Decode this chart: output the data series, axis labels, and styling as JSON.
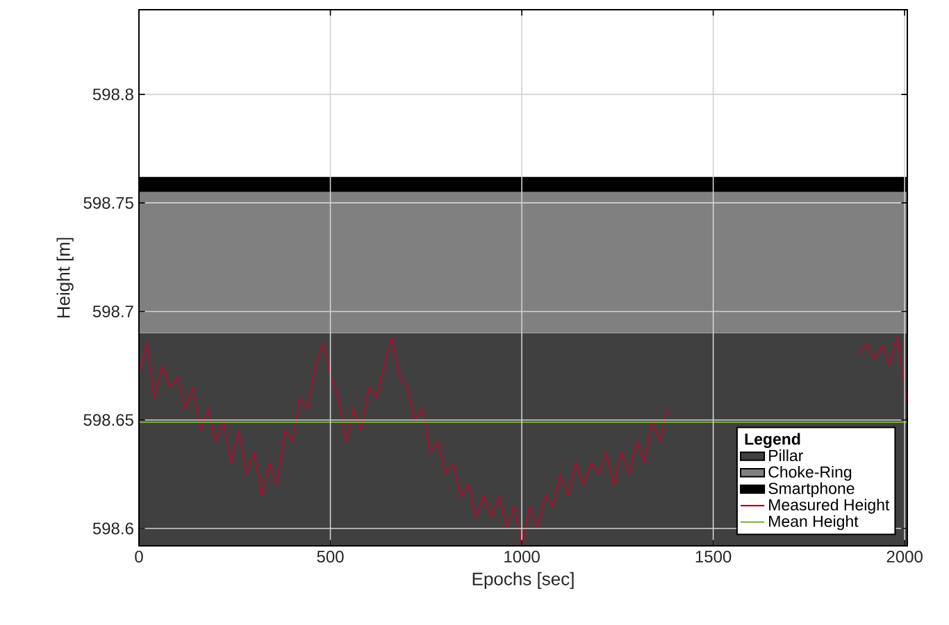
{
  "chart_data": {
    "type": "line",
    "xlabel": "Epochs [sec]",
    "ylabel": "Height [m]",
    "legend_title": "Legend",
    "x": [
      0,
      20,
      40,
      60,
      80,
      100,
      120,
      140,
      160,
      180,
      200,
      220,
      240,
      260,
      280,
      300,
      320,
      340,
      360,
      380,
      400,
      420,
      440,
      460,
      480,
      500,
      520,
      540,
      560,
      580,
      600,
      620,
      640,
      660,
      680,
      700,
      720,
      740,
      760,
      780,
      800,
      820,
      840,
      860,
      880,
      900,
      920,
      940,
      960,
      980,
      1000,
      1020,
      1040,
      1060,
      1080,
      1100,
      1120,
      1140,
      1160,
      1180,
      1200,
      1220,
      1240,
      1260,
      1280,
      1300,
      1320,
      1340,
      1360,
      1380,
      1400,
      1500,
      1600,
      1700,
      1800,
      1880,
      1900,
      1920,
      1940,
      1960,
      1980,
      2000,
      2005
    ],
    "series": [
      {
        "name": "Pillar",
        "type": "area",
        "color": "#404040",
        "x": [
          0,
          2007
        ],
        "values": [
          598.69,
          598.69
        ]
      },
      {
        "name": "Measured Height",
        "color": "#a2142f",
        "values": [
          598.672,
          598.685,
          598.66,
          598.675,
          598.665,
          598.67,
          598.655,
          598.665,
          598.645,
          598.655,
          598.64,
          598.65,
          598.63,
          598.645,
          598.625,
          598.635,
          598.615,
          598.63,
          598.62,
          598.645,
          598.64,
          598.66,
          598.655,
          598.675,
          598.685,
          598.67,
          598.66,
          598.64,
          598.655,
          598.645,
          598.665,
          598.66,
          598.675,
          598.688,
          598.67,
          598.665,
          598.65,
          598.655,
          598.635,
          598.64,
          598.625,
          598.63,
          598.615,
          598.62,
          598.605,
          598.615,
          598.605,
          598.615,
          598.6,
          598.61,
          598.592,
          598.61,
          598.6,
          598.615,
          598.61,
          598.625,
          598.615,
          598.63,
          598.62,
          598.63,
          598.625,
          598.635,
          598.62,
          598.635,
          598.625,
          598.64,
          598.63,
          598.65,
          598.64,
          598.655,
          null,
          null,
          null,
          null,
          null,
          598.68,
          598.685,
          598.678,
          598.684,
          598.675,
          598.688,
          598.665,
          598.658
        ]
      }
    ],
    "bands": [
      {
        "axis": "y",
        "from": 598.69,
        "to": 598.755,
        "label": "Choke-Ring",
        "color": "#808080"
      },
      {
        "axis": "y",
        "from": 598.755,
        "to": 598.762,
        "label": "Smartphone",
        "color": "#000000"
      }
    ],
    "ref_lines": [
      {
        "axis": "y",
        "value": 598.649,
        "label": "Mean Height",
        "color": "#77ac30"
      }
    ],
    "xlim": [
      0,
      2007
    ],
    "ylim": [
      598.592,
      598.839
    ],
    "xticks": [
      0,
      500,
      1000,
      1500,
      2000
    ],
    "yticks": [
      598.6,
      598.65,
      598.7,
      598.75,
      598.8
    ],
    "grid": true,
    "legend": "bottom right"
  }
}
